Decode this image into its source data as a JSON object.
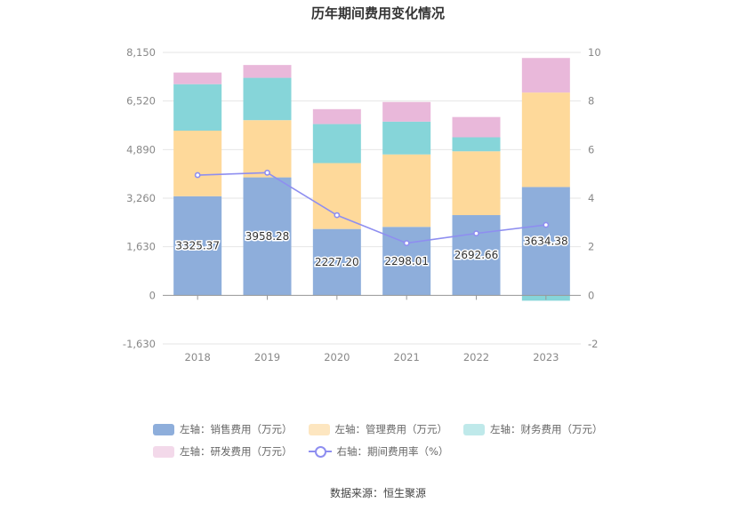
{
  "chart_data": {
    "type": "bar",
    "title": "历年期间费用变化情况",
    "categories": [
      "2018",
      "2019",
      "2020",
      "2021",
      "2022",
      "2023"
    ],
    "series": [
      {
        "name": "左轴：销售费用（万元）",
        "axis": "left",
        "color": "#8eaedb",
        "values": [
          3325.37,
          3958.28,
          2227.2,
          2298.01,
          2692.66,
          3634.38
        ],
        "labels": [
          "3325.37",
          "3958.28",
          "2227.20",
          "2298.01",
          "2692.66",
          "3634.38"
        ]
      },
      {
        "name": "左轴：管理费用（万元）",
        "axis": "left",
        "color": "#fed99a",
        "values": [
          2200,
          1920,
          2210,
          2430,
          2140,
          3170
        ]
      },
      {
        "name": "左轴：财务费用（万元）",
        "axis": "left",
        "color": "#86d5d9",
        "values": [
          1560,
          1420,
          1310,
          1100,
          470,
          -180
        ]
      },
      {
        "name": "左轴：研发费用（万元）",
        "axis": "left",
        "color": "#e9b8da",
        "values": [
          390,
          430,
          500,
          660,
          680,
          1160
        ]
      }
    ],
    "line_series": {
      "name": "右轴：期间费用率（%）",
      "axis": "right",
      "color": "#8e8ef0",
      "values": [
        4.95,
        5.05,
        3.3,
        2.15,
        2.55,
        2.9
      ]
    },
    "y_left": {
      "ticks": [
        "8,150",
        "6,520",
        "4,890",
        "3,260",
        "1,630",
        "0",
        "-1,630"
      ],
      "min": -1630,
      "max": 8150
    },
    "y_right": {
      "ticks": [
        "10",
        "8",
        "6",
        "4",
        "2",
        "0",
        "-2"
      ],
      "min": -2,
      "max": 10
    },
    "grid": true,
    "legend_position": "bottom"
  },
  "legend": {
    "sales": "左轴：销售费用（万元）",
    "admin": "左轴：管理费用（万元）",
    "finance": "左轴：财务费用（万元）",
    "rnd": "左轴：研发费用（万元）",
    "rate": "右轴：期间费用率（%）"
  },
  "source": "数据来源：恒生聚源",
  "colors": {
    "sales": "#8eaedb",
    "admin": "#fed99a",
    "finance": "#86d5d9",
    "rnd": "#e9b8da",
    "rate": "#8e8ef0"
  }
}
